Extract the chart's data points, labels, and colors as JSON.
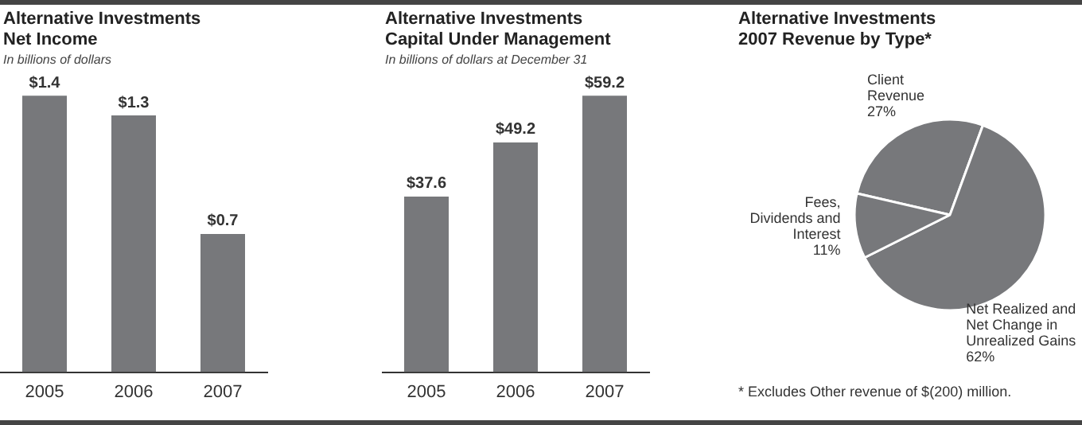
{
  "chart_data": [
    {
      "type": "bar",
      "title": "Alternative Investments\nNet Income",
      "subtitle": "In billions of dollars",
      "categories": [
        "2005",
        "2006",
        "2007"
      ],
      "values": [
        1.4,
        1.3,
        0.7
      ],
      "value_labels": [
        "$1.4",
        "$1.3",
        "$0.7"
      ],
      "color": "#77787b",
      "grid": false,
      "legend": false
    },
    {
      "type": "bar",
      "title": "Alternative Investments\nCapital Under Management",
      "subtitle": "In billions of dollars at December 31",
      "categories": [
        "2005",
        "2006",
        "2007"
      ],
      "values": [
        37.6,
        49.2,
        59.2
      ],
      "value_labels": [
        "$37.6",
        "$49.2",
        "$59.2"
      ],
      "color": "#77787b",
      "grid": false,
      "legend": false
    },
    {
      "type": "pie",
      "title": "Alternative Investments\n2007 Revenue by Type*",
      "categories": [
        "Client Revenue",
        "Net Realized and Net Change in Unrealized Gains",
        "Fees, Dividends and Interest"
      ],
      "values": [
        27,
        62,
        11
      ],
      "value_labels": [
        "27%",
        "62%",
        "11%"
      ],
      "colors": [
        "#77787b",
        "#77787b",
        "#77787b"
      ],
      "legend": false,
      "annotations": [
        "* Excludes Other revenue of $(200) million."
      ]
    }
  ]
}
